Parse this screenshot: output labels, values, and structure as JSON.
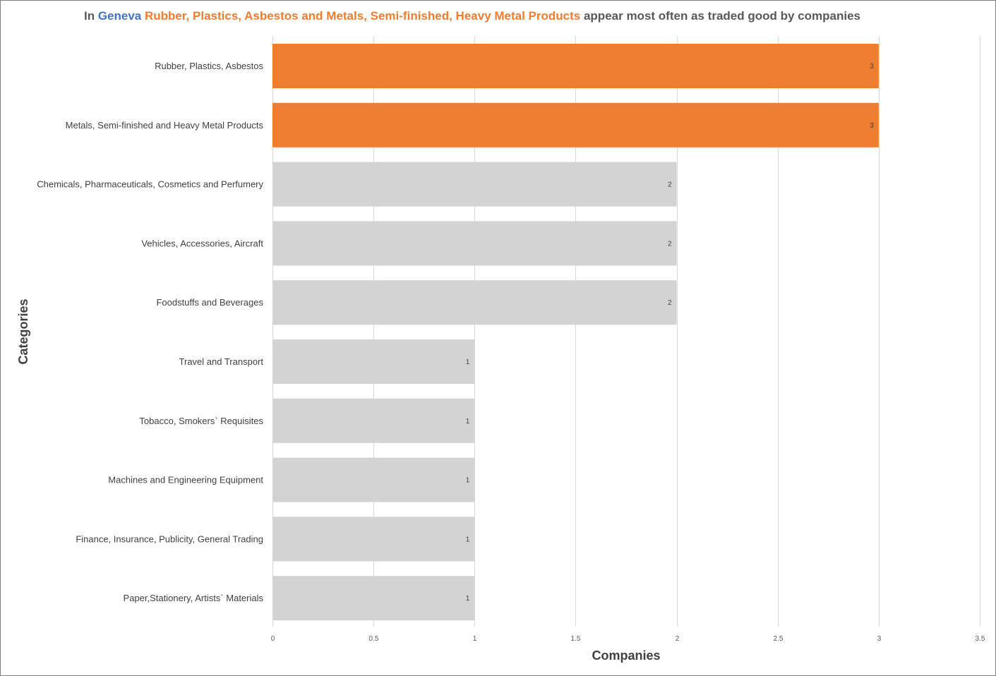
{
  "title": {
    "prefix": "In",
    "city": "Geneva",
    "categories_text": "Rubber, Plastics, Asbestos and Metals, Semi-finished, Heavy Metal Products",
    "suffix": "appear most often as traded good by companies"
  },
  "colors": {
    "highlight": "#ed7d31",
    "default_bar": "#d3d3d3",
    "city": "#4472c4",
    "title_text": "#595959",
    "gridline": "#d9d9d9"
  },
  "chart_data": {
    "type": "bar",
    "orientation": "horizontal",
    "categories": [
      "Rubber, Plastics, Asbestos",
      "Metals, Semi-finished and Heavy Metal Products",
      "Chemicals, Pharmaceuticals, Cosmetics and Perfumery",
      "Vehicles, Accessories, Aircraft",
      "Foodstuffs and Beverages",
      "Travel and Transport",
      "Tobacco, Smokers` Requisites",
      "Machines and Engineering Equipment",
      "Finance, Insurance, Publicity, General Trading",
      "Paper,Stationery, Artists` Materials"
    ],
    "values": [
      3,
      3,
      2,
      2,
      2,
      1,
      1,
      1,
      1,
      1
    ],
    "highlighted": [
      true,
      true,
      false,
      false,
      false,
      false,
      false,
      false,
      false,
      false
    ],
    "xlabel": "Companies",
    "ylabel": "Categories",
    "xlim": [
      0,
      3.5
    ],
    "xticks": [
      "0",
      "0.5",
      "1",
      "1.5",
      "2",
      "2.5",
      "3",
      "3.5"
    ],
    "grid": true,
    "legend": "none"
  }
}
